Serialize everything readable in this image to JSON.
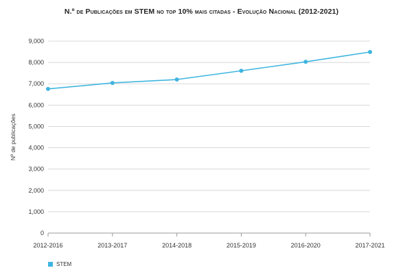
{
  "chart_data": {
    "type": "line",
    "title": "N.º de Publicações em STEM no top 10% mais citadas - Evolução Nacional (2012-2021)",
    "ylabel": "Nº de publicações",
    "xlabel": "",
    "categories": [
      "2012-2016",
      "2013-2017",
      "2014-2018",
      "2015-2019",
      "2016-2020",
      "2017-2021"
    ],
    "series": [
      {
        "name": "STEM",
        "values": [
          6760,
          7040,
          7200,
          7610,
          8030,
          8490
        ],
        "color": "#3fb5e0"
      }
    ],
    "ylim": [
      0,
      9000
    ],
    "yticks": [
      0,
      1000,
      2000,
      3000,
      4000,
      5000,
      6000,
      7000,
      8000,
      9000
    ],
    "ytick_labels": [
      "0",
      "1,000",
      "2,000",
      "3,000",
      "4,000",
      "5,000",
      "6,000",
      "7,000",
      "8,000",
      "9,000"
    ],
    "grid": true,
    "legend_position": "bottom-left"
  }
}
